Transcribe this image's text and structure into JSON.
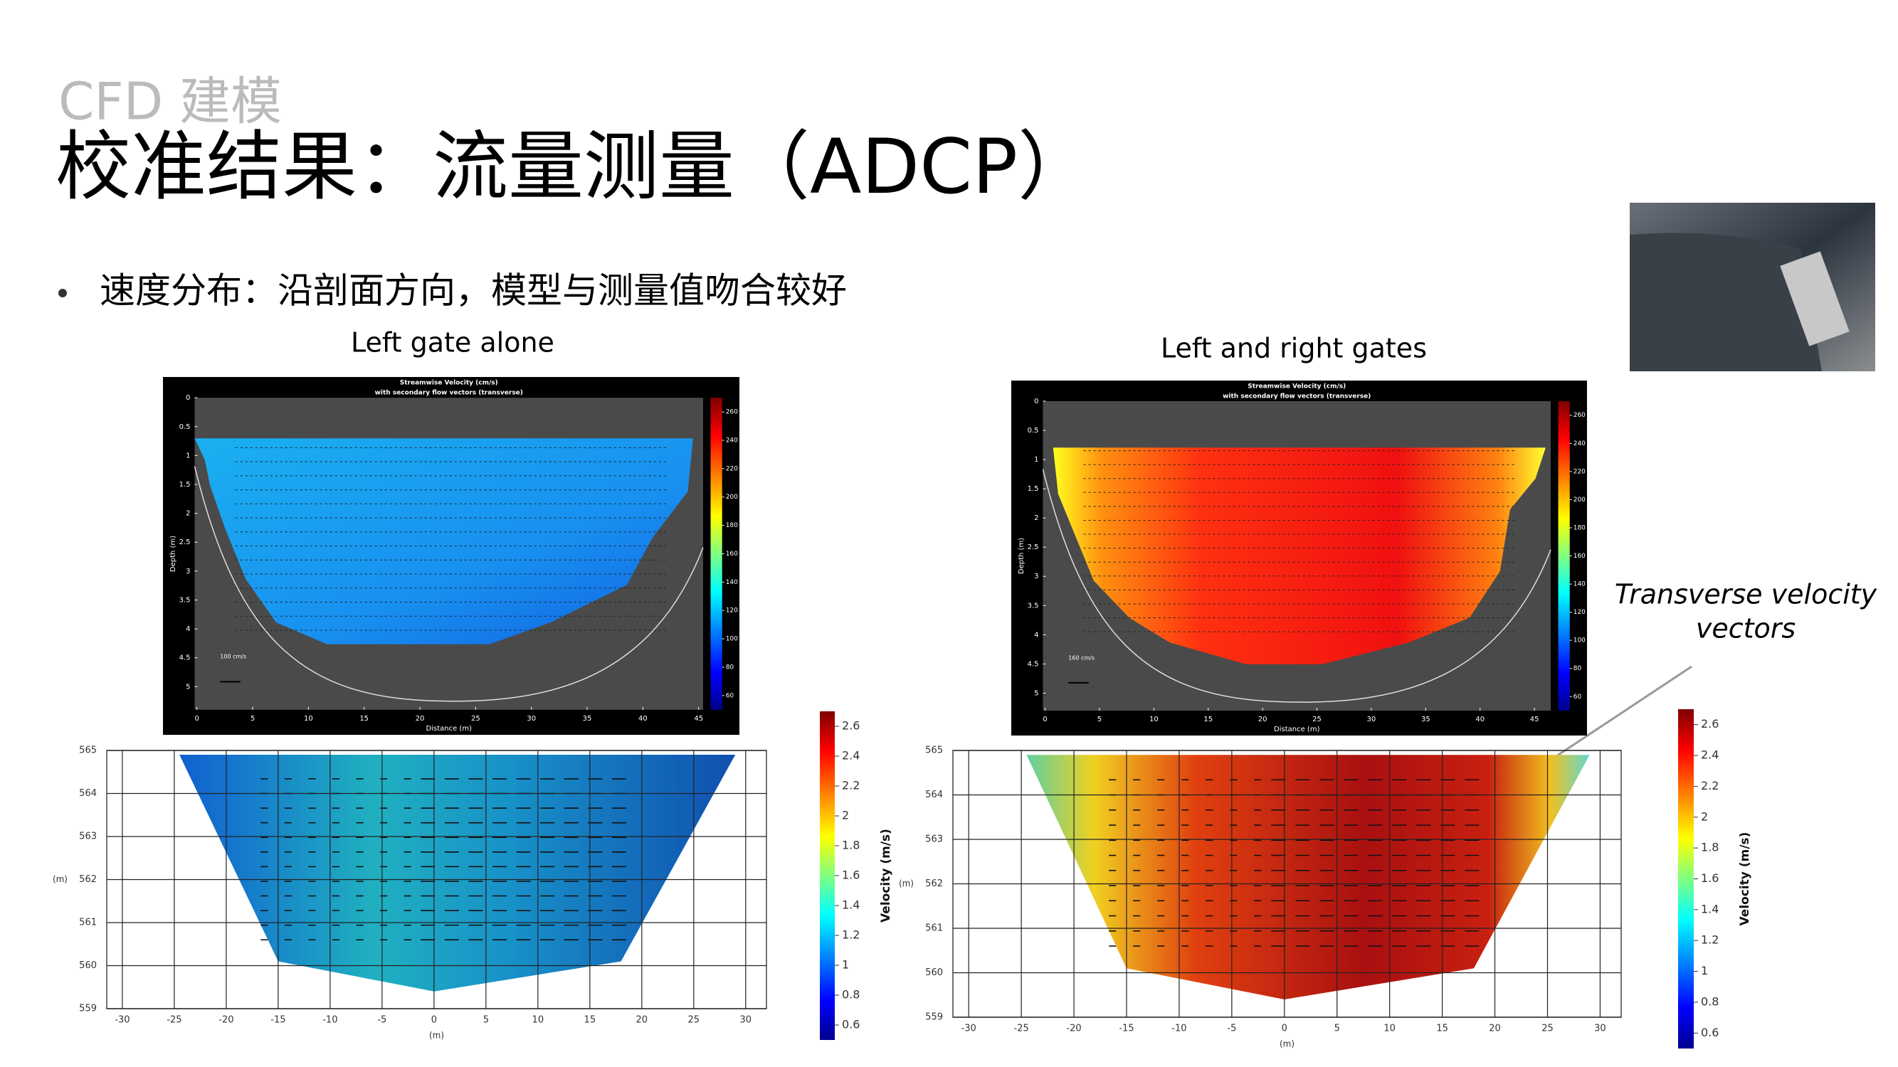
{
  "header": {
    "subtitle": "CFD 建模",
    "title": "校准结果：流量测量（ADCP）"
  },
  "bullet": "速度分布：沿剖面方向，模型与测量值吻合较好",
  "panels": [
    {
      "label": "Left gate alone",
      "adcp": {
        "title": [
          "Streamwise Velocity (cm/s)",
          "with secondary flow vectors (transverse)"
        ],
        "xlabel": "Distance (m)",
        "ylabel": "Depth (m)",
        "xlim": [
          -0.2,
          45.4
        ],
        "ylim": [
          0,
          5.4
        ],
        "xticks": [
          0,
          5,
          10,
          15,
          20,
          25,
          30,
          35,
          40,
          45
        ],
        "yticks": [
          0,
          0.5,
          1,
          1.5,
          2,
          2.5,
          3,
          3.5,
          4,
          4.5,
          5
        ],
        "clim": [
          50,
          270
        ],
        "cticks": [
          60,
          80,
          100,
          120,
          140,
          160,
          180,
          200,
          220,
          240,
          260
        ],
        "scale": "100 cm/s"
      },
      "cfd": {
        "xlabel": "(m)",
        "ylabel": "(m)",
        "xlim": [
          -31.5,
          32
        ],
        "ylim": [
          559,
          565
        ],
        "xticks": [
          -30,
          -25,
          -20,
          -15,
          -10,
          -5,
          0,
          5,
          10,
          15,
          20,
          25,
          30
        ],
        "yticks": [
          559,
          560,
          561,
          562,
          563,
          564,
          565
        ],
        "clim": [
          0.5,
          2.7
        ],
        "cticks": [
          0.6,
          0.8,
          1,
          1.2,
          1.4,
          1.6,
          1.8,
          2,
          2.2,
          2.4,
          2.6
        ],
        "clabel": "Velocity (m/s)"
      }
    },
    {
      "label": "Left and right gates",
      "adcp": {
        "title": [
          "Streamwise Velocity (cm/s)",
          "with secondary flow vectors (transverse)"
        ],
        "xlabel": "Distance (m)",
        "ylabel": "Depth (m)",
        "xlim": [
          -0.2,
          46.5
        ],
        "ylim": [
          0,
          5.3
        ],
        "xticks": [
          0,
          5,
          10,
          15,
          20,
          25,
          30,
          35,
          40,
          45
        ],
        "yticks": [
          0,
          0.5,
          1,
          1.5,
          2,
          2.5,
          3,
          3.5,
          4,
          4.5,
          5
        ],
        "clim": [
          50,
          270
        ],
        "cticks": [
          60,
          80,
          100,
          120,
          140,
          160,
          180,
          200,
          220,
          240,
          260
        ],
        "scale": "160 cm/s"
      },
      "cfd": {
        "xlabel": "(m)",
        "ylabel": "(m)",
        "xlim": [
          -31.5,
          32
        ],
        "ylim": [
          559,
          565
        ],
        "xticks": [
          -30,
          -25,
          -20,
          -15,
          -10,
          -5,
          0,
          5,
          10,
          15,
          20,
          25,
          30
        ],
        "yticks": [
          559,
          560,
          561,
          562,
          563,
          564,
          565
        ],
        "clim": [
          0.5,
          2.7
        ],
        "cticks": [
          0.6,
          0.8,
          1,
          1.2,
          1.4,
          1.6,
          1.8,
          2,
          2.2,
          2.4,
          2.6
        ],
        "clabel": "Velocity (m/s)"
      }
    }
  ],
  "annotation": [
    "Transverse velocity",
    "vectors"
  ]
}
